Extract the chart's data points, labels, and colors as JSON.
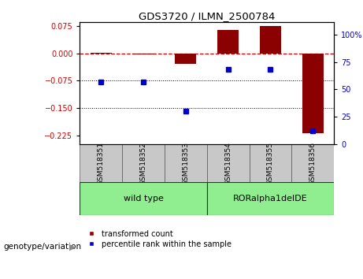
{
  "title": "GDS3720 / ILMN_2500784",
  "samples": [
    "GSM518351",
    "GSM518352",
    "GSM518353",
    "GSM518354",
    "GSM518355",
    "GSM518356"
  ],
  "red_bars": [
    0.002,
    -0.003,
    -0.028,
    0.065,
    0.075,
    -0.22
  ],
  "blue_points": [
    57,
    57,
    30,
    68,
    68,
    12
  ],
  "left_ylim": [
    -0.25,
    0.085
  ],
  "right_ylim": [
    0,
    111
  ],
  "left_yticks": [
    0.075,
    0,
    -0.075,
    -0.15,
    -0.225
  ],
  "right_ytick_vals": [
    100,
    75,
    50,
    25,
    0
  ],
  "right_ytick_labels": [
    "100%",
    "75",
    "50",
    "25",
    "0"
  ],
  "hlines": [
    -0.075,
    -0.15
  ],
  "zero_line": 0.0,
  "group_label": "genotype/variation",
  "wt_label": "wild type",
  "ror_label": "RORalpha1delDE",
  "bar_color": "#8B0000",
  "point_color": "#0000CD",
  "bg_color": "#FFFFFF",
  "bar_width": 0.5,
  "left_label_color": "#CC0000",
  "right_label_color": "#0000CC",
  "sample_box_color": "#C8C8C8",
  "group_box_color": "#90EE90",
  "legend_label_red": "transformed count",
  "legend_label_blue": "percentile rank within the sample"
}
